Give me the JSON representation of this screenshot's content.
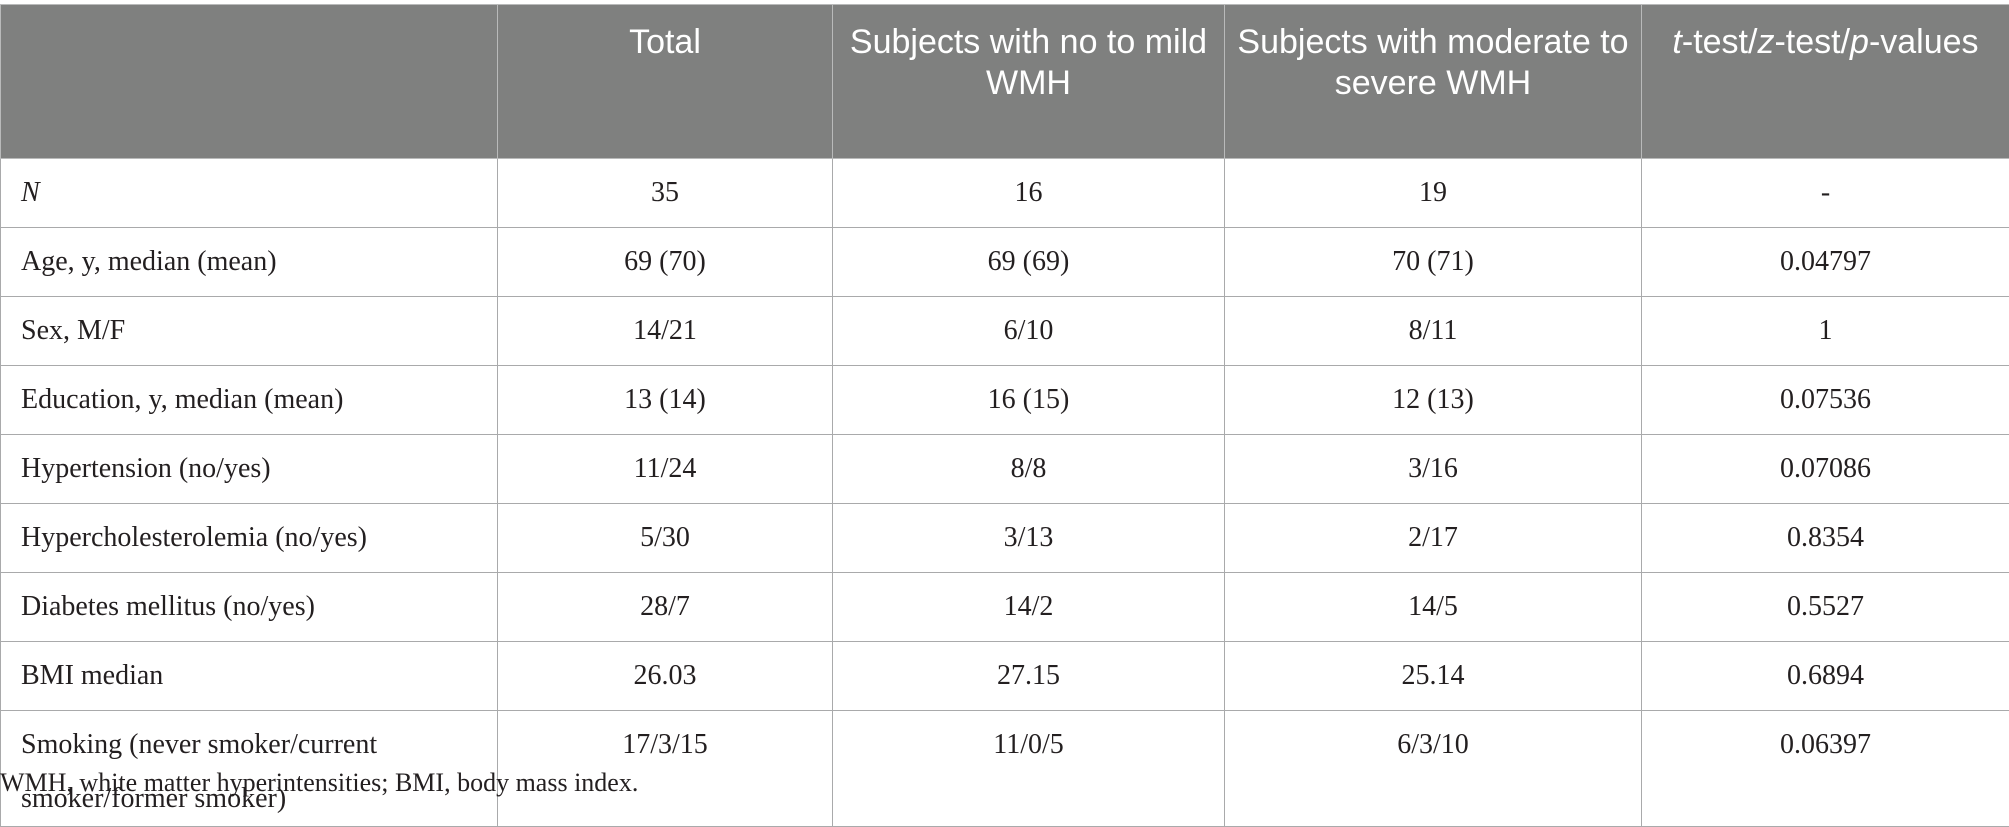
{
  "table": {
    "headers": [
      "",
      "Total",
      "Subjects with no to mild WMH",
      "Subjects with moderate to severe WMH",
      {
        "t": "t",
        "z": "z",
        "p": "p",
        "sep1": "-test/",
        "sep2": "-test/",
        "tail": "-values"
      }
    ],
    "rows": [
      {
        "label": "N",
        "total": "35",
        "mild": "16",
        "severe": "19",
        "p": "-"
      },
      {
        "label": "Age, y, median (mean)",
        "total": "69 (70)",
        "mild": "69 (69)",
        "severe": "70 (71)",
        "p": "0.04797"
      },
      {
        "label": "Sex, M/F",
        "total": "14/21",
        "mild": "6/10",
        "severe": "8/11",
        "p": "1"
      },
      {
        "label": "Education, y, median (mean)",
        "total": "13 (14)",
        "mild": "16 (15)",
        "severe": "12 (13)",
        "p": "0.07536"
      },
      {
        "label": "Hypertension (no/yes)",
        "total": "11/24",
        "mild": "8/8",
        "severe": "3/16",
        "p": "0.07086"
      },
      {
        "label": "Hypercholesterolemia (no/yes)",
        "total": "5/30",
        "mild": "3/13",
        "severe": "2/17",
        "p": "0.8354"
      },
      {
        "label": "Diabetes mellitus (no/yes)",
        "total": "28/7",
        "mild": "14/2",
        "severe": "14/5",
        "p": "0.5527"
      },
      {
        "label": "BMI median",
        "total": "26.03",
        "mild": "27.15",
        "severe": "25.14",
        "p": "0.6894"
      },
      {
        "label": "Smoking (never smoker/current smoker/former smoker)",
        "total": "17/3/15",
        "mild": "11/0/5",
        "severe": "6/3/10",
        "p": "0.06397"
      }
    ]
  },
  "footnote": "WMH, white matter hyperintensities; BMI, body mass index."
}
